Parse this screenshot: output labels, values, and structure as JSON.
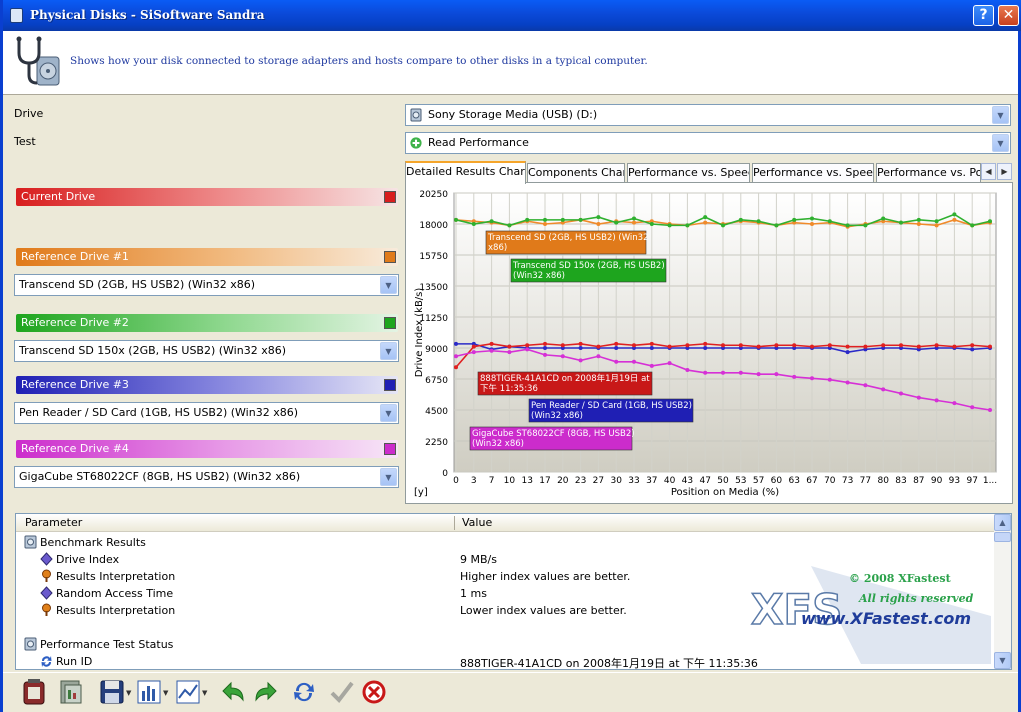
{
  "window": {
    "title": "Physical Disks - SiSoftware Sandra",
    "help": "?",
    "close": "✕"
  },
  "header": {
    "description": "Shows how your disk connected to storage adapters and hosts compare to other disks in a typical computer."
  },
  "form": {
    "drive_label": "Drive",
    "drive_value": "Sony    Storage Media    (USB) (D:)",
    "test_label": "Test",
    "test_value": "Read Performance"
  },
  "drives": {
    "current": {
      "label": "Current Drive",
      "color": "#d81e1e"
    },
    "ref1": {
      "label": "Reference Drive #1",
      "color": "#e07a1a",
      "value": "Transcend SD (2GB, HS USB2) (Win32 x86)"
    },
    "ref2": {
      "label": "Reference Drive #2",
      "color": "#1ea51e",
      "value": "Transcend SD 150x (2GB, HS USB2) (Win32 x86)"
    },
    "ref3": {
      "label": "Reference Drive #3",
      "color": "#1f1fb4",
      "value": "Pen Reader / SD Card (1GB, HS USB2) (Win32 x86)"
    },
    "ref4": {
      "label": "Reference Drive #4",
      "color": "#cc2ccc",
      "value": "GigaCube ST68022CF (8GB, HS USB2) (Win32 x86)"
    }
  },
  "tabs": [
    "Detailed Results Chart",
    "Components Chart",
    "Performance vs. Speed",
    "Performance vs. Speed",
    "Performance vs. Pow"
  ],
  "chart_data": {
    "type": "line",
    "ylabel": "Drive Index (kB/s)",
    "xlabel": "Position on Media (%)",
    "corner_label": "[y]",
    "ylim": [
      0,
      20250
    ],
    "yticks": [
      0,
      2250,
      4500,
      6750,
      9000,
      11250,
      13500,
      15750,
      18000,
      20250
    ],
    "x": [
      0,
      3,
      7,
      10,
      13,
      17,
      20,
      23,
      27,
      30,
      33,
      37,
      40,
      43,
      47,
      50,
      53,
      57,
      60,
      63,
      67,
      70,
      73,
      77,
      80,
      83,
      87,
      90,
      93,
      97,
      100
    ],
    "xtick_labels": [
      "0",
      "3",
      "7",
      "10",
      "13",
      "17",
      "20",
      "23",
      "27",
      "30",
      "33",
      "37",
      "40",
      "43",
      "47",
      "50",
      "53",
      "57",
      "60",
      "63",
      "67",
      "70",
      "73",
      "77",
      "80",
      "83",
      "87",
      "90",
      "93",
      "97",
      "1..."
    ],
    "grid": true,
    "series": [
      {
        "name": "Transcend SD (2GB, HS USB2) (Win32 x86)",
        "color": "#f08a2a",
        "values": [
          18300,
          18200,
          18100,
          17900,
          18200,
          18000,
          18100,
          18300,
          18000,
          18200,
          18100,
          18200,
          18000,
          17900,
          18100,
          18000,
          18200,
          18100,
          17900,
          18100,
          18000,
          18100,
          17800,
          18000,
          18200,
          18100,
          18000,
          17900,
          18300,
          17900,
          18100
        ]
      },
      {
        "name": "Transcend SD 150x (2GB, HS USB2)",
        "color": "#2fb02f",
        "values": [
          18300,
          18000,
          18200,
          17900,
          18300,
          18300,
          18300,
          18300,
          18500,
          18100,
          18400,
          18000,
          17900,
          17900,
          18500,
          17900,
          18300,
          18200,
          17900,
          18300,
          18400,
          18200,
          17900,
          17900,
          18400,
          18100,
          18300,
          18200,
          18700,
          17900,
          18200
        ]
      },
      {
        "name": "888TIGER-41A1CD on 2008年1月19日 at 下午 11:35:36",
        "color": "#e02020",
        "values": [
          7600,
          9100,
          9300,
          9100,
          9200,
          9300,
          9200,
          9300,
          9100,
          9300,
          9200,
          9300,
          9100,
          9200,
          9300,
          9200,
          9200,
          9100,
          9200,
          9200,
          9100,
          9200,
          9100,
          9100,
          9200,
          9200,
          9100,
          9200,
          9100,
          9200,
          9100
        ]
      },
      {
        "name": "Pen Reader / SD Card (1GB, HS USB2)",
        "color": "#2a2ac8",
        "values": [
          9300,
          9300,
          8900,
          9100,
          9000,
          9000,
          9000,
          9000,
          9000,
          9000,
          9000,
          9000,
          9000,
          9000,
          9000,
          9000,
          9000,
          9000,
          9000,
          9000,
          9000,
          9000,
          8700,
          8900,
          9000,
          9000,
          8900,
          9000,
          9000,
          8900,
          9000
        ]
      },
      {
        "name": "GigaCube ST68022CF (8GB, HS USB2)",
        "color": "#d630d6",
        "values": [
          8400,
          8700,
          8800,
          8700,
          8900,
          8500,
          8400,
          8100,
          8400,
          8000,
          8000,
          7700,
          7900,
          7400,
          7200,
          7200,
          7200,
          7100,
          7100,
          6900,
          6800,
          6700,
          6500,
          6300,
          6000,
          5700,
          5400,
          5200,
          5000,
          4700,
          4500
        ]
      }
    ],
    "annotations": [
      {
        "lines": [
          "Transcend SD (2GB, HS USB2) (Win32",
          "x86)"
        ],
        "color": "#e07a1a"
      },
      {
        "lines": [
          "Transcend SD 150x (2GB, HS USB2)",
          "(Win32 x86)"
        ],
        "color": "#1ea51e"
      },
      {
        "lines": [
          "888TIGER-41A1CD on 2008年1月19日 at",
          "下午 11:35:36"
        ],
        "color": "#c81818"
      },
      {
        "lines": [
          "Pen Reader / SD Card (1GB, HS USB2)",
          "(Win32 x86)"
        ],
        "color": "#1f1fb4"
      },
      {
        "lines": [
          "GigaCube ST68022CF (8GB, HS USB2)",
          "(Win32 x86)"
        ],
        "color": "#cc2ccc"
      }
    ]
  },
  "grid": {
    "col_parameter": "Parameter",
    "col_value": "Value",
    "rows": [
      {
        "param": "Benchmark Results",
        "value": "",
        "icon": "benchmark-icon",
        "indent": 0
      },
      {
        "param": "Drive Index",
        "value": "9 MB/s",
        "icon": "diamond-icon",
        "indent": 1
      },
      {
        "param": "Results Interpretation",
        "value": "Higher index values are better.",
        "icon": "pin-icon",
        "indent": 1
      },
      {
        "param": "Random Access Time",
        "value": "1 ms",
        "icon": "diamond-icon",
        "indent": 1
      },
      {
        "param": "Results Interpretation",
        "value": "Lower index values are better.",
        "icon": "pin-icon",
        "indent": 1
      },
      {
        "param": "",
        "value": "",
        "icon": "",
        "indent": 0
      },
      {
        "param": "Performance Test Status",
        "value": "",
        "icon": "benchmark-icon",
        "indent": 0
      },
      {
        "param": "Run ID",
        "value": "888TIGER-41A1CD on 2008年1月19日 at 下午 11:35:36",
        "icon": "refresh-icon",
        "indent": 1
      }
    ]
  },
  "watermark": {
    "copyright": "© 2008 XFastest",
    "rights": "All rights reserved",
    "site": "www.XFastest.com",
    "logo": "XFS"
  }
}
